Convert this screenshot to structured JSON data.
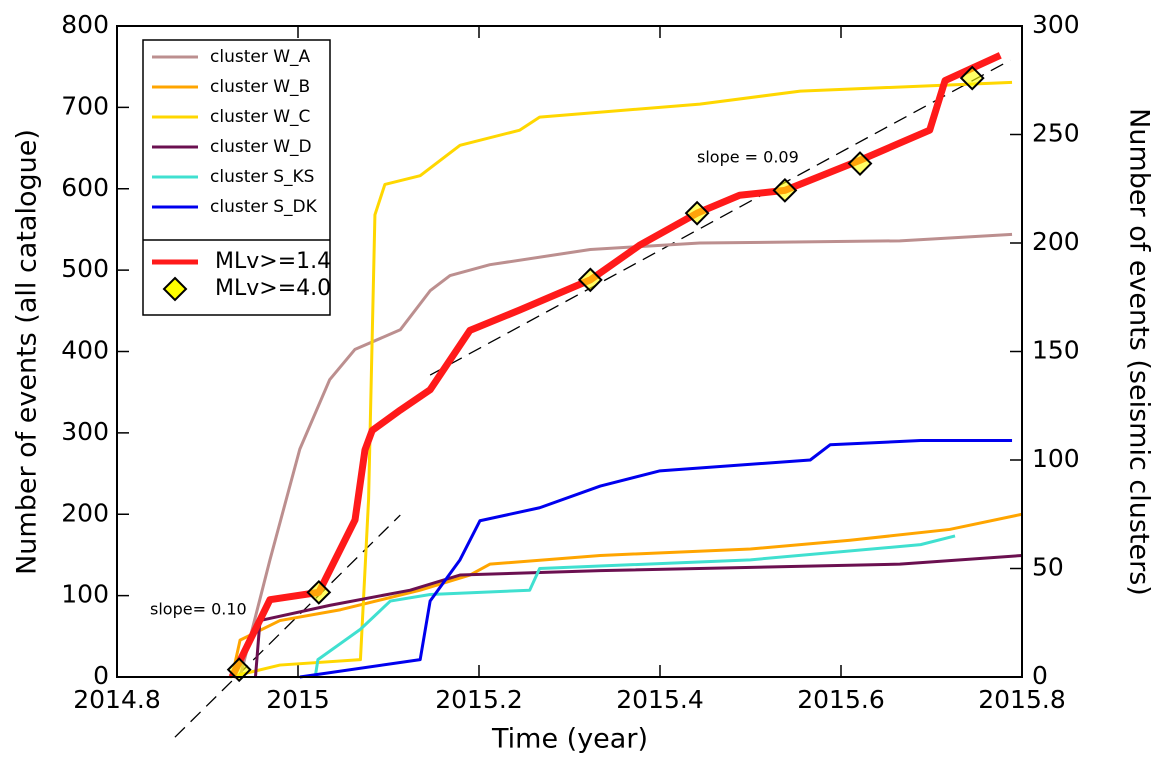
{
  "chart_data": {
    "type": "line",
    "xlabel": "Time (year)",
    "ylabel": "Number of events (all catalogue)",
    "y2label": "Number of events (seismic clusters)",
    "xlim": [
      2014.8,
      2015.8
    ],
    "xticks": [
      2014.8,
      2015,
      2015.2,
      2015.4,
      2015.6,
      2015.8
    ],
    "ylim": [
      0,
      800
    ],
    "yticks": [
      0,
      100,
      200,
      300,
      400,
      500,
      600,
      700,
      800
    ],
    "y2lim": [
      0,
      300
    ],
    "y2ticks": [
      0,
      50,
      100,
      150,
      200,
      250,
      300
    ],
    "legend": "upper left",
    "series": [
      {
        "name": "cluster W_A",
        "color": "#bc8f8f",
        "axis": "y2",
        "x": [
          2014.936,
          2014.969,
          2015.002,
          2015.035,
          2015.063,
          2015.113,
          2015.146,
          2015.168,
          2015.212,
          2015.323,
          2015.444,
          2015.665,
          2015.789
        ],
        "values": [
          0,
          54,
          105,
          137,
          151,
          160,
          178,
          185,
          190,
          197,
          200,
          201,
          204
        ]
      },
      {
        "name": "cluster W_B",
        "color": "#ffa500",
        "axis": "y2",
        "x": [
          2014.927,
          2014.936,
          2014.98,
          2015.047,
          2015.135,
          2015.19,
          2015.212,
          2015.334,
          2015.5,
          2015.61,
          2015.72,
          2015.8
        ],
        "values": [
          0,
          17,
          26,
          31,
          40,
          47,
          52,
          56,
          59,
          63,
          68,
          75
        ]
      },
      {
        "name": "cluster W_C",
        "color": "#ffd700",
        "axis": "y2",
        "x": [
          2014.925,
          2014.98,
          2015.069,
          2015.078,
          2015.085,
          2015.096,
          2015.135,
          2015.179,
          2015.245,
          2015.267,
          2015.444,
          2015.555,
          2015.789
        ],
        "values": [
          0,
          5.5,
          8,
          82,
          213,
          227,
          231,
          245,
          252,
          258,
          264,
          270,
          274
        ]
      },
      {
        "name": "cluster W_D",
        "color": "#6b1050",
        "axis": "y2",
        "x": [
          2014.953,
          2014.958,
          2015.035,
          2015.124,
          2015.179,
          2015.334,
          2015.665,
          2015.8
        ],
        "values": [
          0,
          26,
          33,
          40,
          47,
          49,
          52,
          56
        ]
      },
      {
        "name": "cluster S_KS",
        "color": "#40e0d0",
        "axis": "y2",
        "x": [
          2015.019,
          2015.022,
          2015.069,
          2015.102,
          2015.146,
          2015.256,
          2015.267,
          2015.5,
          2015.688,
          2015.726
        ],
        "values": [
          0,
          8,
          22,
          35,
          38,
          40,
          50,
          54,
          61,
          65
        ]
      },
      {
        "name": "cluster S_DK",
        "color": "#0000ee",
        "axis": "y2",
        "x": [
          2015.002,
          2015.135,
          2015.146,
          2015.179,
          2015.201,
          2015.267,
          2015.334,
          2015.4,
          2015.566,
          2015.588,
          2015.688,
          2015.789
        ],
        "values": [
          0,
          8,
          35,
          54,
          72,
          78,
          88,
          95,
          100,
          107,
          109,
          109
        ]
      },
      {
        "name": "MLv>=1.4",
        "color": "#ff1a1a",
        "x": [
          2014.927,
          2014.969,
          2015.023,
          2015.063,
          2015.074,
          2015.082,
          2015.113,
          2015.146,
          2015.19,
          2015.245,
          2015.323,
          2015.378,
          2015.441,
          2015.488,
          2015.538,
          2015.621,
          2015.698,
          2015.715,
          2015.776
        ],
        "values": [
          0,
          95,
          104,
          193,
          279,
          303,
          328,
          353,
          426,
          451,
          488,
          531,
          570,
          592,
          598,
          635,
          672,
          733,
          764
        ]
      },
      {
        "name": "MLv>=4.0",
        "color": "#ffff00",
        "type": "scatter",
        "x": [
          2014.935,
          2015.023,
          2015.323,
          2015.441,
          2015.538,
          2015.621,
          2015.745
        ],
        "values": [
          9,
          104,
          488,
          570,
          598,
          631,
          736
        ]
      }
    ],
    "fit_lines": [
      {
        "label": "slope= 0.10",
        "x": [
          2014.864,
          2015.113
        ],
        "values": [
          -74,
          199
        ]
      },
      {
        "label": "slope = 0.09",
        "x": [
          2015.146,
          2015.787
        ],
        "values": [
          371,
          758
        ]
      }
    ]
  }
}
